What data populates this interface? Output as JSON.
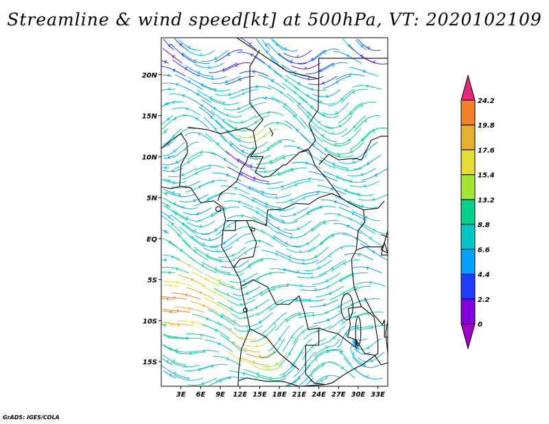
{
  "title": "Streamline & wind speed[kt] at 500hPa, VT: 2020102109",
  "credit": "GrADS: IGES/COLA",
  "map": {
    "lon_range": [
      0,
      34.5
    ],
    "lat_range": [
      -18,
      24.5
    ],
    "lat_labels": [
      "20N",
      "15N",
      "10N",
      "5N",
      "EQ",
      "5S",
      "10S",
      "15S"
    ],
    "lat_values": [
      20,
      15,
      10,
      5,
      0,
      -5,
      -10,
      -15
    ],
    "lon_labels": [
      "3E",
      "6E",
      "9E",
      "12E",
      "15E",
      "18E",
      "21E",
      "24E",
      "27E",
      "30E",
      "33E"
    ],
    "lon_values": [
      3,
      6,
      9,
      12,
      15,
      18,
      21,
      24,
      27,
      30,
      33
    ]
  },
  "colorbar": {
    "levels": [
      "0",
      "2.2",
      "4.4",
      "6.6",
      "8.8",
      "13.2",
      "15.4",
      "17.6",
      "19.8",
      "24.2"
    ],
    "colors": [
      "#a000c8",
      "#8200dc",
      "#1e3cff",
      "#00a0ff",
      "#00c8c8",
      "#00d28c",
      "#a0e632",
      "#e6dc32",
      "#e6af2d",
      "#f08228",
      "#e6287d"
    ]
  }
}
